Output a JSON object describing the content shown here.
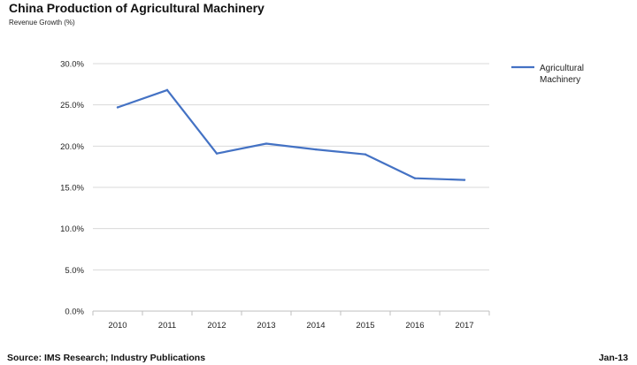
{
  "colors": {
    "series": "#4472c4",
    "gridline": "#d9d9d9",
    "axis": "#bfbfbf"
  },
  "footer": {
    "source": "Source: IMS Research; Industry Publications",
    "date": "Jan-13"
  },
  "chart_data": {
    "type": "line",
    "title": "China Production of Agricultural Machinery",
    "subtitle": "Revenue Growth (%)",
    "xlabel": "",
    "ylabel": "",
    "categories": [
      "2010",
      "2011",
      "2012",
      "2013",
      "2014",
      "2015",
      "2016",
      "2017"
    ],
    "series": [
      {
        "name": "Agricultural Machinery",
        "legend_lines": [
          "Agricultural",
          "Machinery"
        ],
        "values": [
          24.7,
          26.8,
          19.1,
          20.3,
          19.6,
          19.0,
          16.1,
          15.9
        ]
      }
    ],
    "ylim": [
      0,
      30
    ],
    "yticks": [
      0,
      5,
      10,
      15,
      20,
      25,
      30
    ],
    "ytick_labels": [
      "0.0%",
      "5.0%",
      "10.0%",
      "15.0%",
      "20.0%",
      "25.0%",
      "30.0%"
    ],
    "grid": true,
    "legend_position": "top-right"
  }
}
